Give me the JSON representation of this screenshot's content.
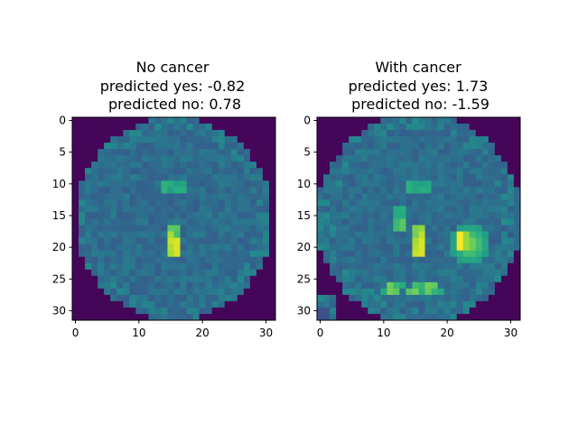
{
  "chart_data": [
    {
      "type": "heatmap",
      "title_lines": [
        "No cancer",
        "predicted yes: -0.82",
        " predicted no: 0.78"
      ],
      "xlim": [
        -0.5,
        31.5
      ],
      "ylim": [
        31.5,
        -0.5
      ],
      "x_ticks": [
        0,
        10,
        20,
        30
      ],
      "y_ticks": [
        0,
        5,
        10,
        15,
        20,
        25,
        30
      ],
      "x_tick_labels": [
        "0",
        "10",
        "20",
        "30"
      ],
      "y_tick_labels": [
        "0",
        "5",
        "10",
        "15",
        "20",
        "25",
        "30"
      ],
      "colormap": "viridis",
      "grid": false,
      "legend": "none"
    },
    {
      "type": "heatmap",
      "title_lines": [
        "With cancer",
        "predicted yes: 1.73",
        " predicted no: -1.59"
      ],
      "xlim": [
        -0.5,
        31.5
      ],
      "ylim": [
        31.5,
        -0.5
      ],
      "x_ticks": [
        0,
        10,
        20,
        30
      ],
      "y_ticks": [
        0,
        5,
        10,
        15,
        20,
        25,
        30
      ],
      "x_tick_labels": [
        "0",
        "10",
        "20",
        "30"
      ],
      "y_tick_labels": [
        "0",
        "5",
        "10",
        "15",
        "20",
        "25",
        "30"
      ],
      "colormap": "viridis",
      "grid": false,
      "legend": "none"
    }
  ],
  "colors": {
    "viridis_low": "#440154",
    "viridis_mid": "#31688e",
    "viridis_high": "#fde725"
  }
}
